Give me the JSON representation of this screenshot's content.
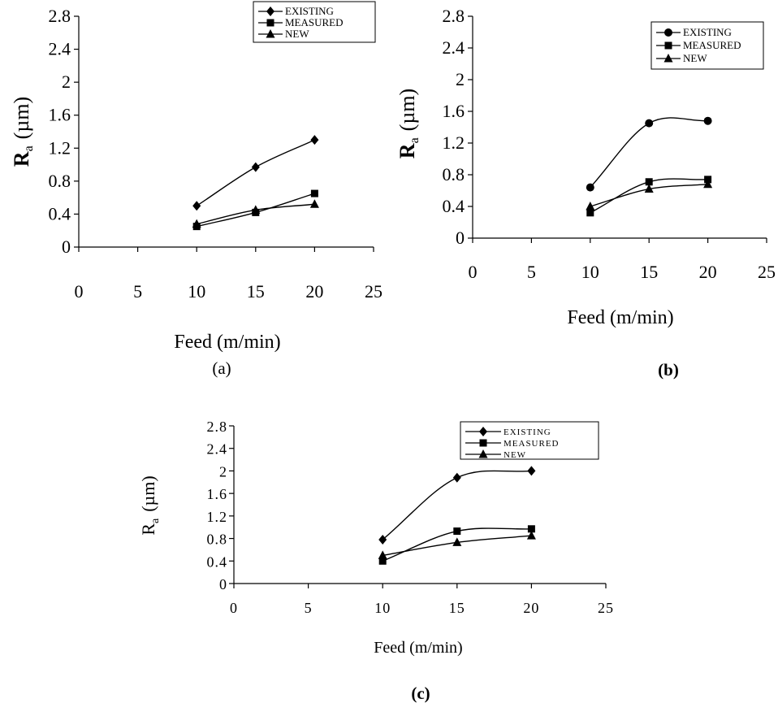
{
  "chart_data": [
    {
      "type": "line",
      "caption": "(a)",
      "xlabel": "Feed (m/min)",
      "ylabel_main": "R",
      "ylabel_sub": "a",
      "ylabel_unit": "(µm)",
      "xlim": [
        0,
        25
      ],
      "ylim": [
        0,
        2.8
      ],
      "xticks": [
        "0",
        "5",
        "10",
        "15",
        "20",
        "25"
      ],
      "yticks": [
        "0",
        "0.4",
        "0.8",
        "1.2",
        "1.6",
        "2",
        "2.4",
        "2.8"
      ],
      "legend_position": "top-right",
      "grid": false,
      "x": [
        10,
        15,
        20
      ],
      "series": [
        {
          "name": "EXISTING",
          "marker": "diamond",
          "values": [
            0.5,
            0.97,
            1.3
          ]
        },
        {
          "name": "MEASURED",
          "marker": "square",
          "values": [
            0.25,
            0.42,
            0.65
          ]
        },
        {
          "name": "NEW",
          "marker": "triangle",
          "values": [
            0.28,
            0.45,
            0.52
          ]
        }
      ]
    },
    {
      "type": "line",
      "caption": "(b)",
      "xlabel": "Feed (m/min)",
      "ylabel_main": "R",
      "ylabel_sub": "a",
      "ylabel_unit": "(µm)",
      "xlim": [
        0,
        25
      ],
      "ylim": [
        0,
        2.8
      ],
      "xticks": [
        "0",
        "5",
        "10",
        "15",
        "20",
        "25"
      ],
      "yticks": [
        "0",
        "0.4",
        "0.8",
        "1.2",
        "1.6",
        "2",
        "2.4",
        "2.8"
      ],
      "legend_position": "top-right",
      "grid": false,
      "x": [
        10,
        15,
        20
      ],
      "series": [
        {
          "name": "EXISTING",
          "marker": "circle",
          "values": [
            0.64,
            1.45,
            1.48
          ]
        },
        {
          "name": "MEASURED",
          "marker": "square",
          "values": [
            0.32,
            0.71,
            0.74
          ]
        },
        {
          "name": "NEW",
          "marker": "triangle",
          "values": [
            0.4,
            0.62,
            0.68
          ]
        }
      ]
    },
    {
      "type": "line",
      "caption": "(c)",
      "xlabel": "Feed (m/min)",
      "ylabel_main": "R",
      "ylabel_sub": "a",
      "ylabel_unit": "(µm)",
      "xlim": [
        0,
        25
      ],
      "ylim": [
        0,
        2.8
      ],
      "xticks": [
        "0",
        "5",
        "10",
        "15",
        "20",
        "25"
      ],
      "yticks": [
        "0",
        "0.4",
        "0.8",
        "1.2",
        "1.6",
        "2",
        "2.4",
        "2.8"
      ],
      "legend_position": "top-right",
      "grid": false,
      "x": [
        10,
        15,
        20
      ],
      "series": [
        {
          "name": "EXISTING",
          "marker": "diamond",
          "values": [
            0.78,
            1.88,
            2.0
          ]
        },
        {
          "name": "MEASURED",
          "marker": "square",
          "values": [
            0.4,
            0.93,
            0.97
          ]
        },
        {
          "name": "NEW",
          "marker": "triangle",
          "values": [
            0.5,
            0.73,
            0.85
          ]
        }
      ]
    }
  ]
}
